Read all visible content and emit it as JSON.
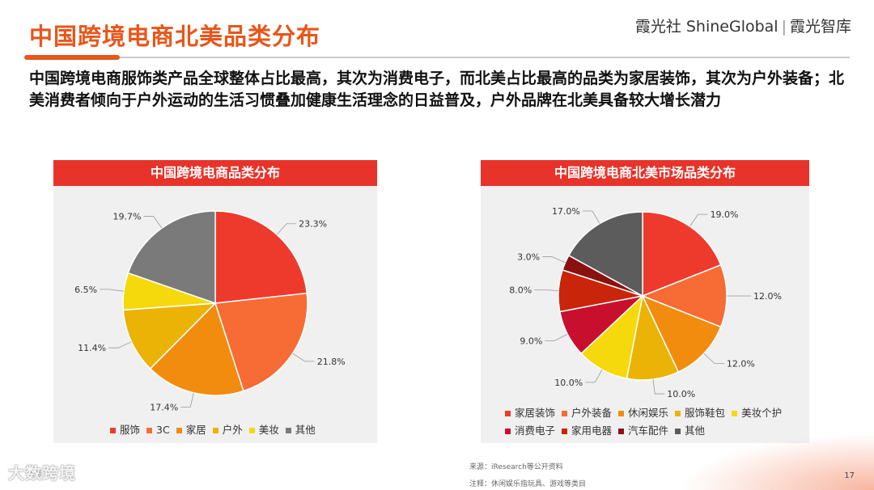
{
  "header": {
    "title": "中国跨境电商北美品类分布",
    "brand_left": "霞光社 ShineGlobal",
    "brand_right": "霞光智库",
    "subtitle": "中国跨境电商服饰类产品全球整体占比最高，其次为消费电子，而北美占比最高的品类为家居装饰，其次为户外装备；北美消费者倾向于户外运动的生活习惯叠加健康生活理念的日益普及，户外品牌在北美具备较大增长潜力"
  },
  "colors": {
    "accent": "#e8561a",
    "panel_header": "#e8332a"
  },
  "chart_data": [
    {
      "type": "pie",
      "title": "中国跨境电商品类分布",
      "categories": [
        "服饰",
        "3C",
        "家居",
        "户外",
        "美妆",
        "其他"
      ],
      "values": [
        23.3,
        21.8,
        17.4,
        11.4,
        6.5,
        19.7
      ],
      "labels": [
        "23.3%",
        "21.8%",
        "17.4%",
        "11.4%",
        "6.5%",
        "19.7%"
      ],
      "colors": [
        "#ee3a2c",
        "#f76b35",
        "#f28c0f",
        "#eab306",
        "#f5d90c",
        "#7a7a7a"
      ],
      "legend": "bottom"
    },
    {
      "type": "pie",
      "title": "中国跨境电商北美市场品类分布",
      "categories": [
        "家居装饰",
        "户外装备",
        "休闲娱乐",
        "服饰鞋包",
        "美妆个护",
        "消费电子",
        "家用电器",
        "汽车配件",
        "其他"
      ],
      "values": [
        19.0,
        12.0,
        12.0,
        10.0,
        10.0,
        9.0,
        8.0,
        3.0,
        17.0
      ],
      "labels": [
        "19.0%",
        "12.0%",
        "12.0%",
        "10.0%",
        "10.0%",
        "9.0%",
        "8.0%",
        "3.0%",
        "17.0%"
      ],
      "colors": [
        "#ee3a2c",
        "#f76b35",
        "#f28c0f",
        "#eab306",
        "#f5d90c",
        "#c8102e",
        "#c8250a",
        "#8b1010",
        "#5c5c5c"
      ],
      "legend": "bottom"
    }
  ],
  "footer": {
    "source": "来源：iResearch等公开资料",
    "note": "注释：休闲娱乐指玩具、游戏等类目",
    "page": "17",
    "watermark": "大数跨境",
    "source_stub": "来源"
  }
}
